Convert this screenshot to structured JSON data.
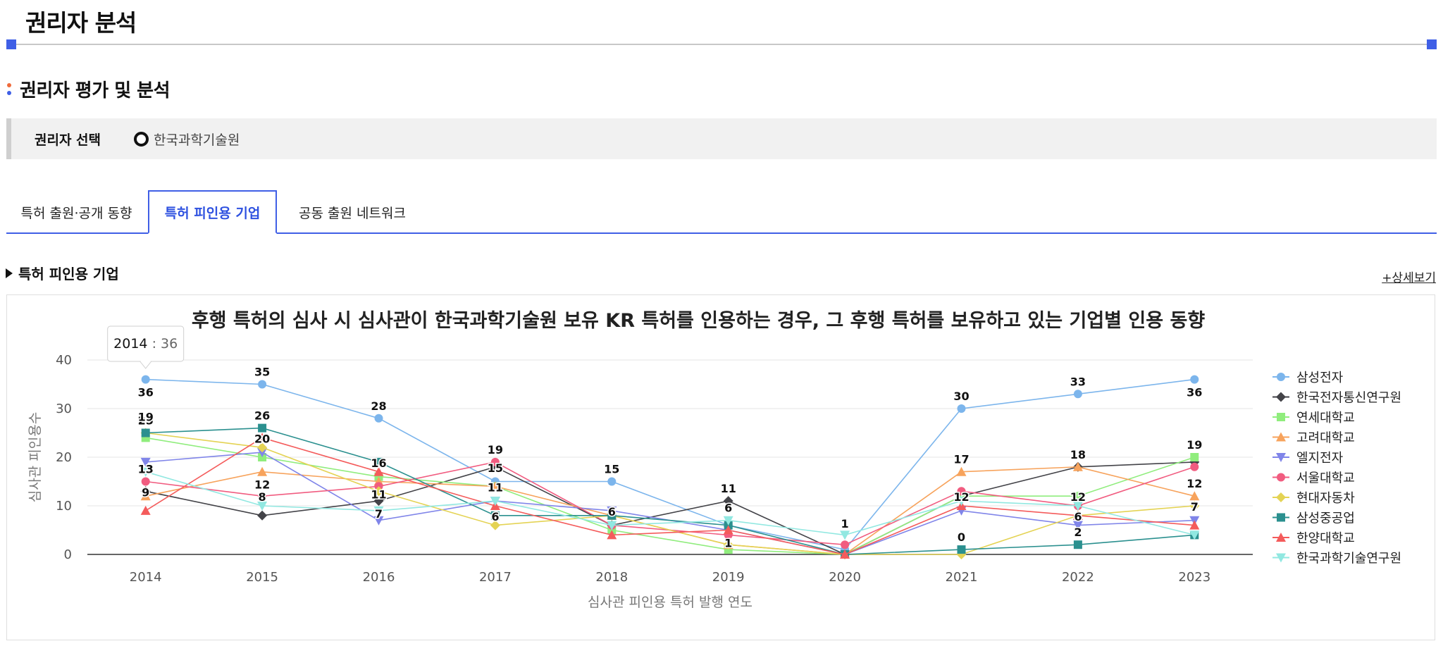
{
  "header": {
    "title": "권리자 분석"
  },
  "section": {
    "title": "권리자 평가 및 분석",
    "bullet_colors": [
      "#ef6b3b",
      "#3f5fe6"
    ]
  },
  "selector": {
    "label": "권리자 선택",
    "option": "한국과학기술원"
  },
  "tabs": [
    {
      "label": "특허 출원·공개 동향",
      "active": false
    },
    {
      "label": "특허 피인용 기업",
      "active": true
    },
    {
      "label": "공동 출원 네트워크",
      "active": false
    }
  ],
  "subsection": {
    "title": "특허 피인용 기업",
    "detail_link": "+상세보기"
  },
  "colors": {
    "accent": "#3f5fe6",
    "tab_active_text": "#2f52e0"
  },
  "chart_data": {
    "type": "line",
    "title": "후행 특허의 심사 시 심사관이 한국과학기술원 보유 KR 특허를 인용하는 경우, 그 후행 특허를 보유하고 있는 기업별 인용 동향",
    "xlabel": "심사관 피인용 특허 발행 연도",
    "ylabel": "심사관 피인용수",
    "categories": [
      "2014",
      "2015",
      "2016",
      "2017",
      "2018",
      "2019",
      "2020",
      "2021",
      "2022",
      "2023"
    ],
    "ylim": [
      0,
      40
    ],
    "yticks": [
      0,
      10,
      20,
      30,
      40
    ],
    "grid": true,
    "legend": "right",
    "tooltip": {
      "category": "2014",
      "value": "36"
    },
    "series": [
      {
        "name": "삼성전자",
        "color": "#7cb5ec",
        "marker": "circle",
        "values": [
          36,
          35,
          28,
          15,
          15,
          6,
          1,
          30,
          33,
          36
        ]
      },
      {
        "name": "한국전자통신연구원",
        "color": "#434348",
        "marker": "diamond",
        "values": [
          13,
          8,
          11,
          18,
          6,
          11,
          0,
          12,
          18,
          19
        ]
      },
      {
        "name": "연세대학교",
        "color": "#90ed7d",
        "marker": "square",
        "values": [
          24,
          20,
          16,
          14,
          5,
          1,
          0,
          12,
          12,
          20
        ]
      },
      {
        "name": "고려대학교",
        "color": "#f7a35c",
        "marker": "triangle",
        "values": [
          12,
          17,
          15,
          14,
          8,
          2,
          0,
          17,
          18,
          12
        ]
      },
      {
        "name": "엘지전자",
        "color": "#8085e9",
        "marker": "triangle-down",
        "values": [
          19,
          21,
          7,
          11,
          9,
          5,
          0,
          9,
          6,
          7
        ]
      },
      {
        "name": "서울대학교",
        "color": "#f15c80",
        "marker": "circle",
        "values": [
          15,
          12,
          14,
          19,
          6,
          4,
          2,
          13,
          10,
          18
        ]
      },
      {
        "name": "현대자동차",
        "color": "#e4d354",
        "marker": "diamond",
        "values": [
          25,
          22,
          13,
          6,
          8,
          2,
          0,
          0,
          8,
          10
        ]
      },
      {
        "name": "삼성중공업",
        "color": "#2b908f",
        "marker": "square",
        "values": [
          25,
          26,
          19,
          8,
          8,
          6,
          0,
          1,
          2,
          4
        ]
      },
      {
        "name": "한양대학교",
        "color": "#f45b5b",
        "marker": "triangle",
        "values": [
          9,
          24,
          17,
          10,
          4,
          5,
          0,
          10,
          8,
          6
        ]
      },
      {
        "name": "한국과학기술연구원",
        "color": "#91e8e1",
        "marker": "triangle-down",
        "values": [
          17,
          10,
          9,
          11,
          6,
          7,
          4,
          11,
          10,
          4
        ]
      }
    ],
    "data_labels": [
      {
        "category": "2014",
        "y": 36,
        "text": "36",
        "pos": "below"
      },
      {
        "category": "2014",
        "y": 25,
        "text": "25",
        "pos": "above"
      },
      {
        "category": "2014",
        "y": 24,
        "text": "19",
        "pos": "above-far"
      },
      {
        "category": "2014",
        "y": 15,
        "text": "13",
        "pos": "above"
      },
      {
        "category": "2014",
        "y": 13,
        "text": "9",
        "pos": "on"
      },
      {
        "category": "2015",
        "y": 35,
        "text": "35",
        "pos": "above"
      },
      {
        "category": "2015",
        "y": 26,
        "text": "26",
        "pos": "above"
      },
      {
        "category": "2015",
        "y": 24,
        "text": "20",
        "pos": "on"
      },
      {
        "category": "2015",
        "y": 17,
        "text": "12",
        "pos": "below"
      },
      {
        "category": "2015",
        "y": 12,
        "text": "8",
        "pos": "on"
      },
      {
        "category": "2016",
        "y": 28,
        "text": "28",
        "pos": "above"
      },
      {
        "category": "2016",
        "y": 19,
        "text": "16",
        "pos": "on"
      },
      {
        "category": "2016",
        "y": 15,
        "text": "11",
        "pos": "below"
      },
      {
        "category": "2016",
        "y": 11,
        "text": "7",
        "pos": "below"
      },
      {
        "category": "2017",
        "y": 19,
        "text": "19",
        "pos": "above"
      },
      {
        "category": "2017",
        "y": 18,
        "text": "15",
        "pos": "on"
      },
      {
        "category": "2017",
        "y": 14,
        "text": "11",
        "pos": "on"
      },
      {
        "category": "2017",
        "y": 8,
        "text": "6",
        "pos": "on"
      },
      {
        "category": "2018",
        "y": 15,
        "text": "15",
        "pos": "above"
      },
      {
        "category": "2018",
        "y": 9,
        "text": "6",
        "pos": "on"
      },
      {
        "category": "2019",
        "y": 11,
        "text": "11",
        "pos": "above"
      },
      {
        "category": "2019",
        "y": 7,
        "text": "6",
        "pos": "above"
      },
      {
        "category": "2019",
        "y": 5,
        "text": "1",
        "pos": "below"
      },
      {
        "category": "2020",
        "y": 2,
        "text": "1",
        "pos": "above-far"
      },
      {
        "category": "2021",
        "y": 30,
        "text": "30",
        "pos": "above"
      },
      {
        "category": "2021",
        "y": 17,
        "text": "17",
        "pos": "above"
      },
      {
        "category": "2021",
        "y": 12,
        "text": "12",
        "pos": "on"
      },
      {
        "category": "2021",
        "y": 1,
        "text": "0",
        "pos": "above"
      },
      {
        "category": "2022",
        "y": 33,
        "text": "33",
        "pos": "above"
      },
      {
        "category": "2022",
        "y": 18,
        "text": "18",
        "pos": "above"
      },
      {
        "category": "2022",
        "y": 12,
        "text": "12",
        "pos": "on"
      },
      {
        "category": "2022",
        "y": 8,
        "text": "6",
        "pos": "on"
      },
      {
        "category": "2022",
        "y": 2,
        "text": "2",
        "pos": "above"
      },
      {
        "category": "2023",
        "y": 36,
        "text": "36",
        "pos": "below"
      },
      {
        "category": "2023",
        "y": 20,
        "text": "19",
        "pos": "above"
      },
      {
        "category": "2023",
        "y": 12,
        "text": "12",
        "pos": "above"
      },
      {
        "category": "2023",
        "y": 10,
        "text": "7",
        "pos": "on"
      }
    ]
  }
}
